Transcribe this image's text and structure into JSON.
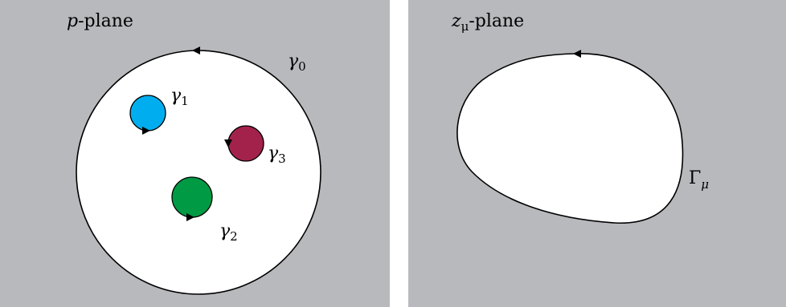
{
  "left_panel": {
    "title_var": "p",
    "title_rest": "-plane",
    "outer_contour": {
      "symbol": "γ",
      "index": "0"
    },
    "holes": [
      {
        "symbol": "γ",
        "index": "1",
        "color": "#00aeef"
      },
      {
        "symbol": "γ",
        "index": "2",
        "color": "#009a44"
      },
      {
        "symbol": "γ",
        "index": "3",
        "color": "#a3224c"
      }
    ]
  },
  "right_panel": {
    "title_var": "z",
    "title_sub": "μ",
    "title_rest": "-plane",
    "contour": {
      "symbol": "Γ",
      "index": "μ"
    }
  },
  "colors": {
    "background": "#b8b9bd",
    "region": "#ffffff",
    "stroke": "#000000"
  }
}
